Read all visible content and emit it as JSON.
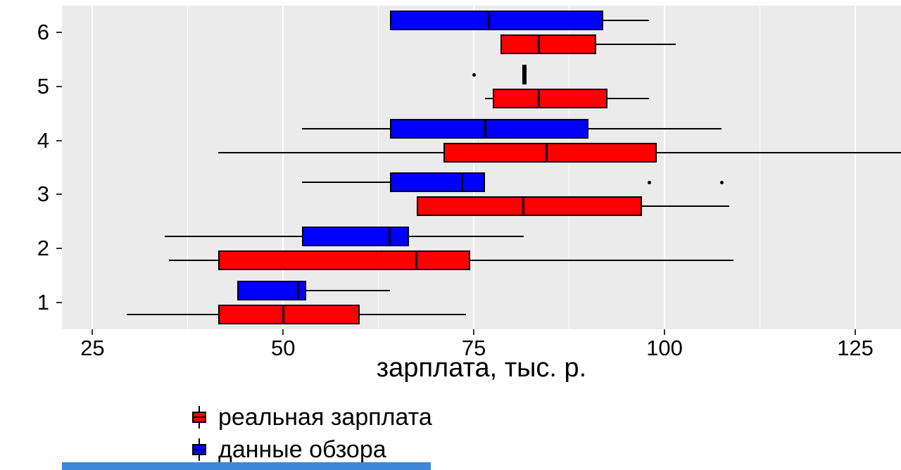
{
  "chart_data": {
    "type": "boxplot",
    "orientation": "horizontal",
    "title": "",
    "xlabel": "зарплата, тыс. р.",
    "ylabel": "",
    "xlim": [
      21,
      131
    ],
    "x_ticks": [
      25,
      50,
      75,
      100,
      125
    ],
    "x_minor_ticks": [
      37.5,
      62.5,
      87.5,
      112.5
    ],
    "categories": [
      "1",
      "2",
      "3",
      "4",
      "5",
      "6"
    ],
    "grid": "on",
    "legend_position": "bottom-left",
    "series": [
      {
        "name": "реальная зарплата",
        "color": "#FF0000",
        "boxes": [
          {
            "group": "1",
            "min": 29.5,
            "q1": 41.5,
            "median": 50,
            "q3": 60,
            "max": 74,
            "outliers": []
          },
          {
            "group": "2",
            "min": 35,
            "q1": 41.5,
            "median": 67.5,
            "q3": 74.5,
            "max": 109,
            "outliers": []
          },
          {
            "group": "3",
            "min": 67.5,
            "q1": 67.5,
            "median": 81.5,
            "q3": 97,
            "max": 108.5,
            "outliers": []
          },
          {
            "group": "4",
            "min": 41.5,
            "q1": 71,
            "median": 84.5,
            "q3": 99,
            "max": 131,
            "outliers": []
          },
          {
            "group": "5",
            "min": 76.5,
            "q1": 77.5,
            "median": 83.5,
            "q3": 92.5,
            "max": 98,
            "outliers": []
          },
          {
            "group": "6",
            "min": 78.5,
            "q1": 78.5,
            "median": 83.5,
            "q3": 91,
            "max": 101.5,
            "outliers": []
          }
        ]
      },
      {
        "name": "данные обзора",
        "color": "#0000FF",
        "boxes": [
          {
            "group": "1",
            "min": 44,
            "q1": 44,
            "median": 52,
            "q3": 53,
            "max": 64,
            "outliers": []
          },
          {
            "group": "2",
            "min": 34.5,
            "q1": 52.5,
            "median": 64,
            "q3": 66.5,
            "max": 81.5,
            "outliers": []
          },
          {
            "group": "3",
            "min": 52.5,
            "q1": 64,
            "median": 73.5,
            "q3": 76.5,
            "max": 76.5,
            "outliers": [
              98,
              107.5
            ]
          },
          {
            "group": "4",
            "min": 52.5,
            "q1": 64,
            "median": 76.5,
            "q3": 90,
            "max": 107.5,
            "outliers": []
          },
          {
            "group": "5",
            "min": 81.5,
            "q1": 81.5,
            "median": 81.5,
            "q3": 81.5,
            "max": 81.5,
            "outliers": [
              75
            ]
          },
          {
            "group": "6",
            "min": 64,
            "q1": 64,
            "median": 77,
            "q3": 92,
            "max": 98,
            "outliers": []
          }
        ]
      }
    ],
    "legend": [
      {
        "label": "реальная зарплата",
        "color": "#FF0000"
      },
      {
        "label": "данные обзора",
        "color": "#0000FF"
      }
    ],
    "colors": {
      "panel_bg": "#EBEBEB",
      "grid": "#FFFFFF",
      "box_border": "#000000",
      "line": "#000000",
      "tick": "#333333"
    }
  },
  "bottom_bar": {
    "color": "#3E86D9"
  }
}
